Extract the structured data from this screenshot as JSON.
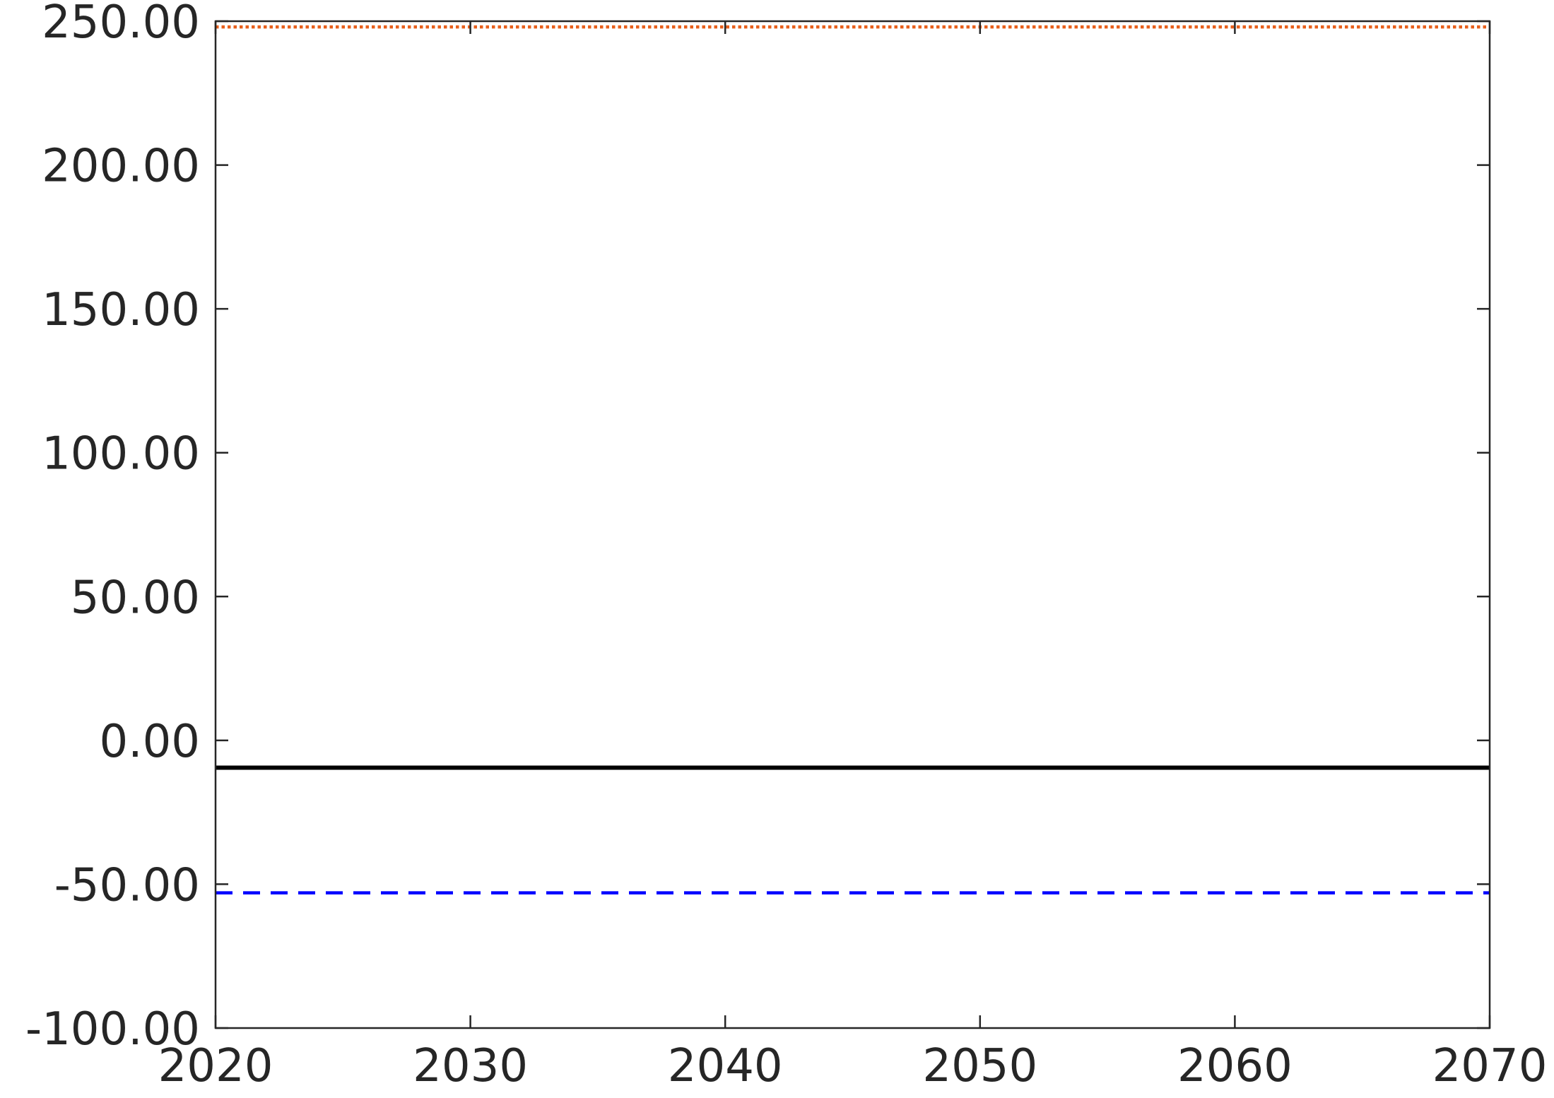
{
  "chart_data": {
    "type": "line",
    "title": "",
    "xlabel": "",
    "ylabel": "",
    "xlim": [
      2020,
      2070
    ],
    "ylim": [
      -100,
      250
    ],
    "x_ticks": [
      2020,
      2030,
      2040,
      2050,
      2060,
      2070
    ],
    "x_tick_labels": [
      "2020",
      "2030",
      "2040",
      "2050",
      "2060",
      "2070"
    ],
    "y_ticks": [
      -100,
      -50,
      0,
      50,
      100,
      150,
      200,
      250
    ],
    "y_tick_labels": [
      "-100.00",
      "-50.00",
      "0.00",
      "50.00",
      "100.00",
      "150.00",
      "200.00",
      "250.00"
    ],
    "grid": false,
    "legend": "none",
    "series": [
      {
        "x": [
          2020,
          2070
        ],
        "values": [
          248,
          248
        ],
        "color": "#e8601c",
        "style": "dotted"
      },
      {
        "x": [
          2020,
          2070
        ],
        "values": [
          -9.5,
          -9.5
        ],
        "color": "#000000",
        "style": "solid"
      },
      {
        "x": [
          2020,
          2070
        ],
        "values": [
          -53,
          -53
        ],
        "color": "#0000ff",
        "style": "dashed"
      }
    ]
  }
}
